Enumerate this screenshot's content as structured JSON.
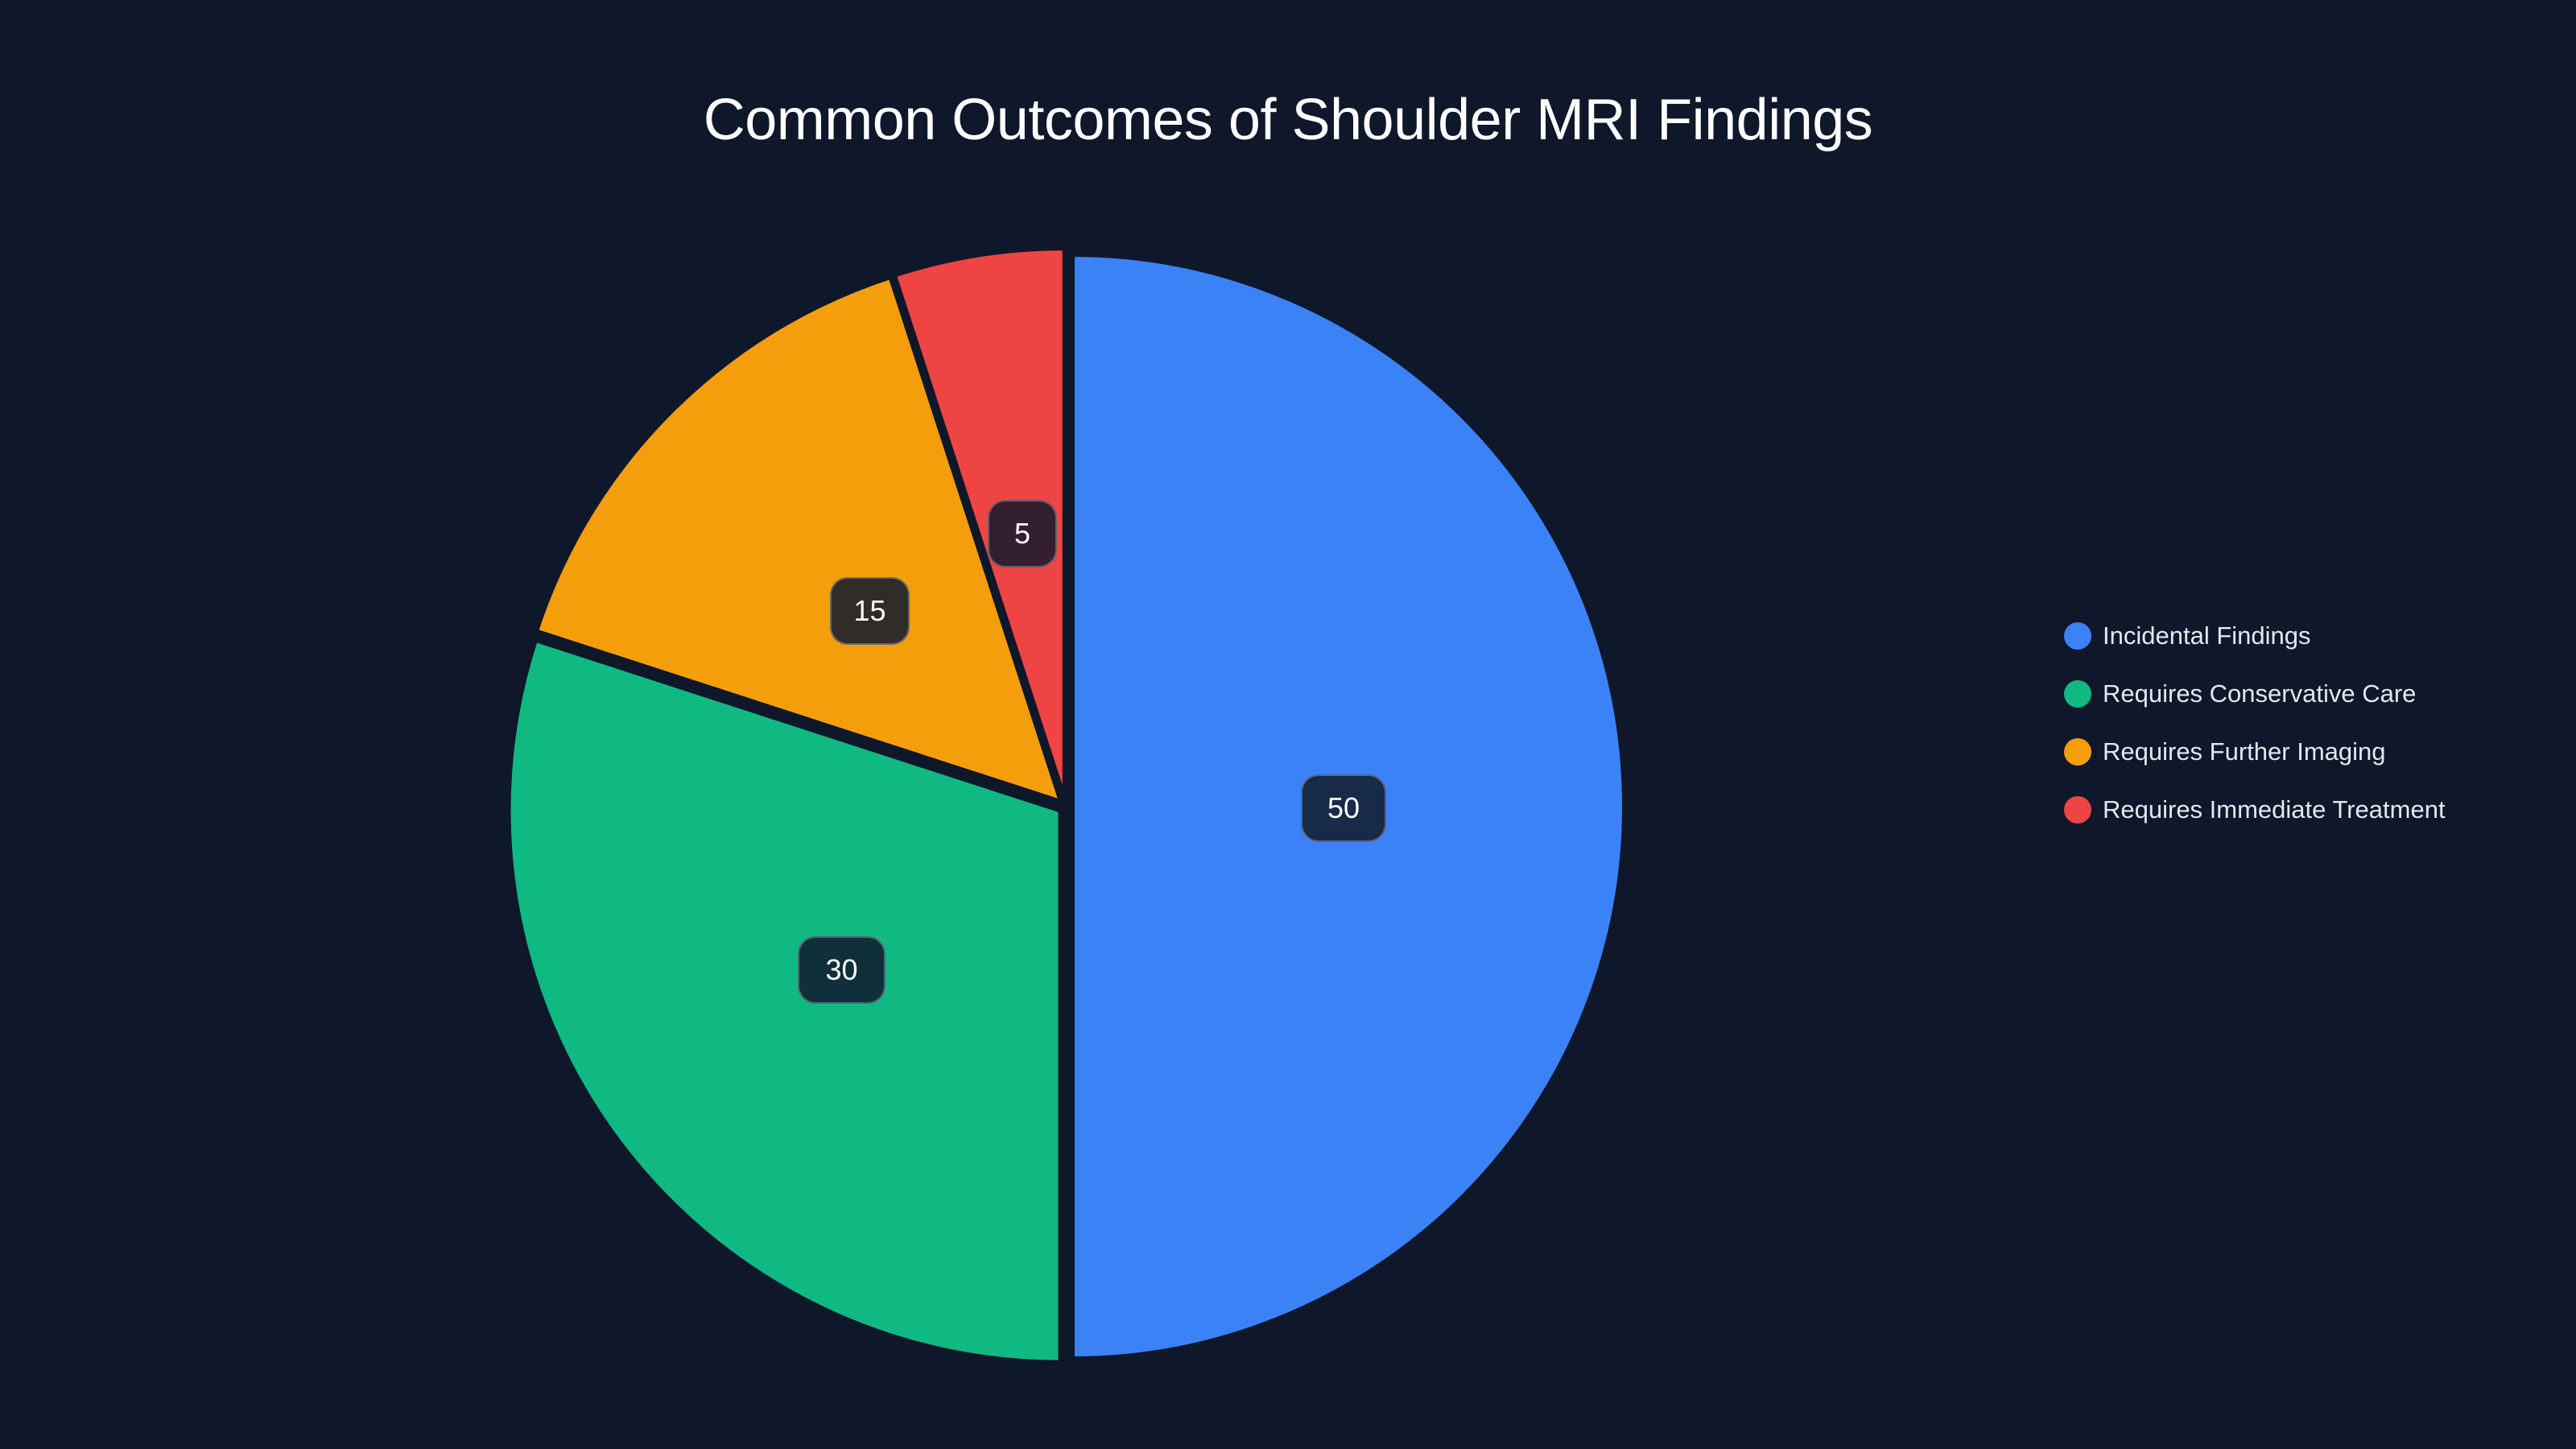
{
  "chart_data": {
    "type": "pie",
    "title": "Common Outcomes of Shoulder MRI Findings",
    "categories": [
      "Incidental Findings",
      "Requires Conservative Care",
      "Requires Further Imaging",
      "Requires Immediate Treatment"
    ],
    "values": [
      50,
      30,
      15,
      5
    ],
    "colors": [
      "#3b82f6",
      "#10b981",
      "#f59e0b",
      "#ef4444"
    ],
    "data_labels": [
      "50",
      "30",
      "15",
      "5"
    ],
    "legend_position": "right",
    "start_angle_deg": 0,
    "direction": "clockwise"
  },
  "title": "Common Outcomes of Shoulder MRI Findings",
  "legend": {
    "items": [
      {
        "label": "Incidental Findings",
        "color": "#3b82f6"
      },
      {
        "label": "Requires Conservative Care",
        "color": "#10b981"
      },
      {
        "label": "Requires Further Imaging",
        "color": "#f59e0b"
      },
      {
        "label": "Requires Immediate Treatment",
        "color": "#ef4444"
      }
    ]
  },
  "labels": [
    {
      "text": "50",
      "bg": "#172a4a"
    },
    {
      "text": "30",
      "bg": "#0f2f3a"
    },
    {
      "text": "15",
      "bg": "#302c27"
    },
    {
      "text": "5",
      "bg": "#341f30"
    }
  ]
}
